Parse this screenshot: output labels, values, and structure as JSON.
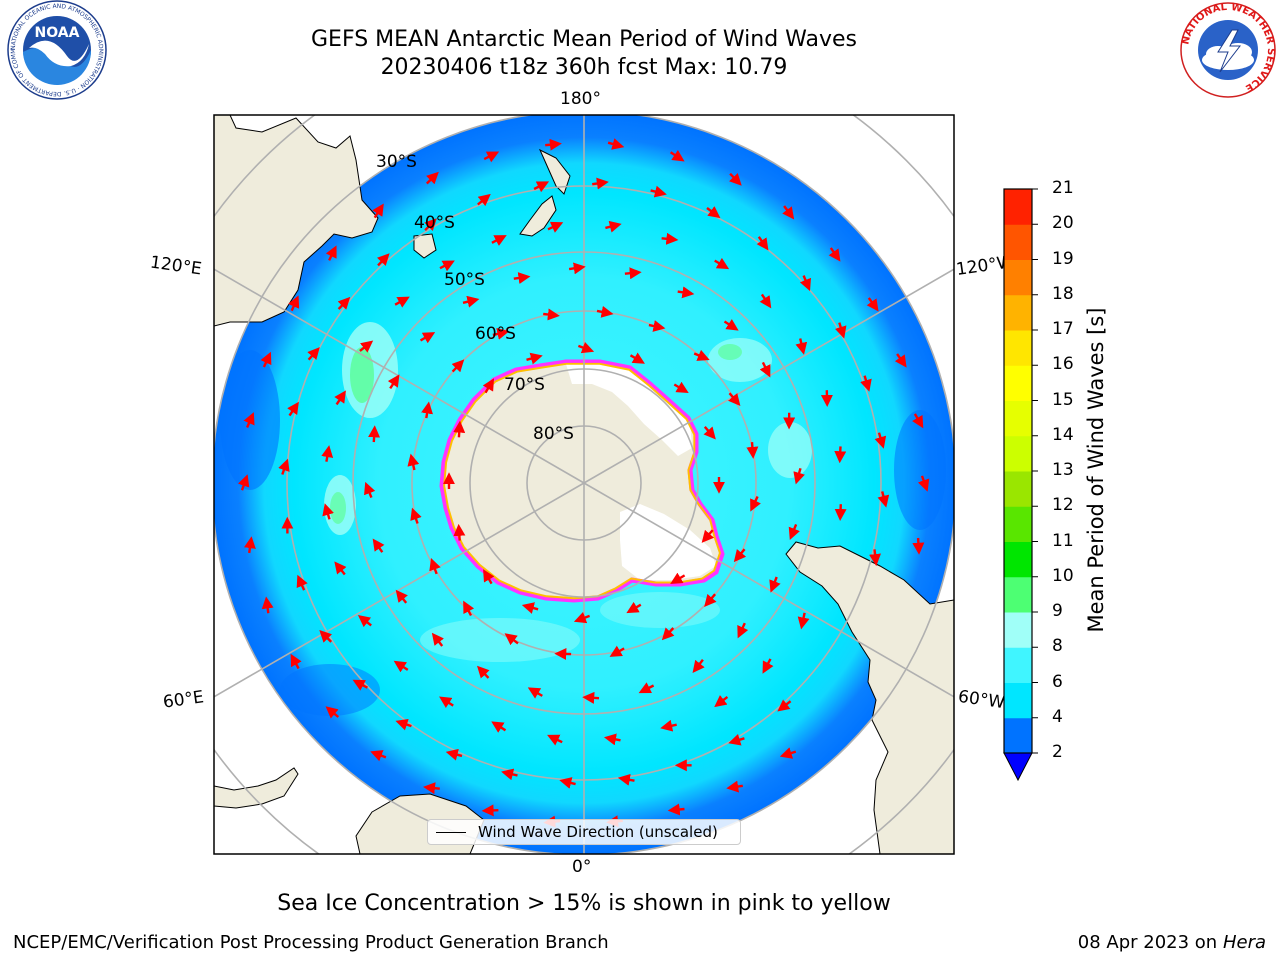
{
  "title_line1": "GEFS MEAN Antarctic Mean Period of Wind Waves",
  "title_line2": "20230406 t18z 360h fcst   Max: 10.79",
  "map": {
    "longitude_labels": {
      "top": "180°",
      "bottom": "0°",
      "upper_left": "120°E",
      "upper_right": "120°W",
      "lower_left": "60°E",
      "lower_right": "60°W"
    },
    "latitude_labels": [
      "30°S",
      "40°S",
      "50°S",
      "60°S",
      "70°S",
      "80°S"
    ],
    "legend_entry": "Wind Wave Direction (unscaled)",
    "colors": {
      "land": "#efecdc",
      "sea_ice_pack": "#ffffff",
      "sea_ice_edge_inner": "#ffbf00",
      "sea_ice_edge_outer": "#ff33ff",
      "arrow": "#ff0000",
      "grid": "#b0b0b0"
    }
  },
  "colorbar": {
    "title": "Mean Period of Wind Waves [s]",
    "tick_labels": [
      "2",
      "4",
      "6",
      "8",
      "9",
      "10",
      "11",
      "12",
      "13",
      "14",
      "15",
      "16",
      "17",
      "18",
      "19",
      "20",
      "21"
    ],
    "colors": [
      "#0073ff",
      "#00e6ff",
      "#40f5ff",
      "#a0fff8",
      "#4dff73",
      "#00e600",
      "#59e600",
      "#9ae600",
      "#ccff00",
      "#e6ff00",
      "#ffff00",
      "#ffe600",
      "#ffb300",
      "#ff8000",
      "#ff5500",
      "#ff2200",
      "#ff0000"
    ],
    "extend_color": "#0000ff"
  },
  "sea_ice_note": "Sea Ice Concentration > 15% is shown in pink to yellow",
  "footer_left": "NCEP/EMC/Verification Post Processing Product Generation Branch",
  "footer_date": "08 Apr 2023 on ",
  "footer_machine": "Hera",
  "logos": {
    "noaa_text": "NOAA",
    "noaa_ring_text": "NATIONAL OCEANIC AND ATMOSPHERIC ADMINISTRATION · U.S. DEPARTMENT OF COMMERCE",
    "nws_ring_text": "NATIONAL WEATHER SERVICE"
  }
}
